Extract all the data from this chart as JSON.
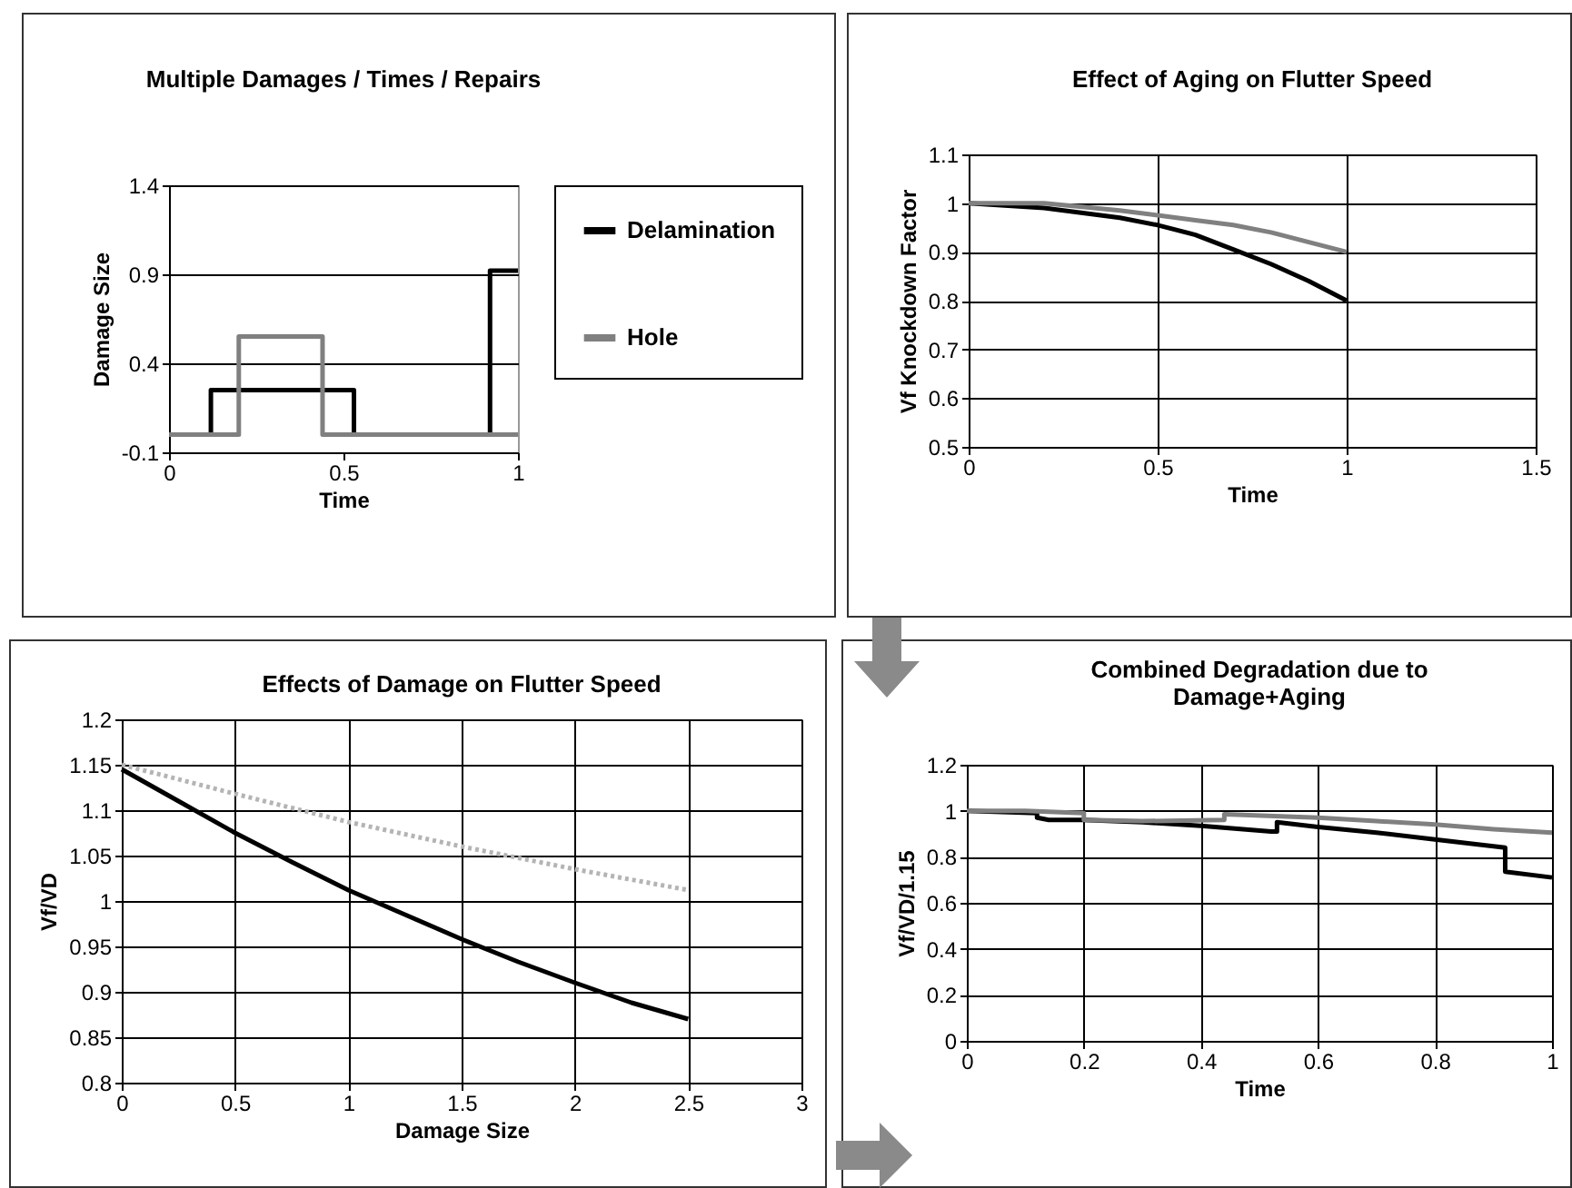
{
  "chart_data": [
    {
      "type": "step",
      "title": "Multiple Damages / Times / Repairs",
      "xlabel": "Time",
      "ylabel": "Damage Size",
      "xlim": [
        0,
        1
      ],
      "xticks": [
        0,
        0.5,
        1
      ],
      "ylim": [
        -0.1,
        1.4
      ],
      "yticks": [
        -0.1,
        0.4,
        0.9,
        1.4
      ],
      "grid": "y",
      "legend": "right",
      "series": [
        {
          "name": "Delamination",
          "color": "#000000",
          "x": [
            0,
            0.12,
            0.53,
            0.92,
            1
          ],
          "values": [
            0,
            0.25,
            0,
            0.92,
            0.92
          ]
        },
        {
          "name": "Hole",
          "color": "#808080",
          "x": [
            0,
            0.2,
            0.44,
            1
          ],
          "values": [
            0,
            0.55,
            0,
            0
          ]
        }
      ]
    },
    {
      "type": "line",
      "title": "Effect of Aging on Flutter Speed",
      "xlabel": "Time",
      "ylabel": "Vf Knockdown Factor",
      "xlim": [
        0,
        1.5
      ],
      "xticks": [
        0,
        0.5,
        1,
        1.5
      ],
      "ylim": [
        0.5,
        1.1
      ],
      "yticks": [
        0.5,
        0.6,
        0.7,
        0.8,
        0.9,
        1,
        1.1
      ],
      "grid": true,
      "series": [
        {
          "color": "#000000",
          "x": [
            0,
            0.2,
            0.4,
            0.5,
            0.6,
            0.7,
            0.8,
            0.9,
            1
          ],
          "values": [
            1,
            0.99,
            0.97,
            0.955,
            0.935,
            0.905,
            0.875,
            0.84,
            0.8
          ]
        },
        {
          "color": "#808080",
          "x": [
            0,
            0.2,
            0.4,
            0.5,
            0.6,
            0.7,
            0.8,
            0.9,
            1
          ],
          "values": [
            1,
            1,
            0.985,
            0.975,
            0.965,
            0.955,
            0.94,
            0.92,
            0.9
          ]
        }
      ]
    },
    {
      "type": "line",
      "title": "Effects of Damage on Flutter Speed",
      "xlabel": "Damage Size",
      "ylabel": "Vf/VD",
      "xlim": [
        0,
        3
      ],
      "xticks": [
        0,
        0.5,
        1,
        1.5,
        2,
        2.5,
        3
      ],
      "ylim": [
        0.8,
        1.2
      ],
      "yticks": [
        0.8,
        0.85,
        0.9,
        0.95,
        1,
        1.05,
        1.1,
        1.15,
        1.2
      ],
      "grid": true,
      "series": [
        {
          "color": "#000000",
          "x": [
            0,
            0.25,
            0.5,
            0.75,
            1,
            1.25,
            1.5,
            1.75,
            2,
            2.25,
            2.5
          ],
          "values": [
            1.145,
            1.11,
            1.075,
            1.043,
            1.012,
            0.985,
            0.958,
            0.933,
            0.91,
            0.888,
            0.87
          ]
        },
        {
          "color": "#b4b4b4",
          "line_style": "dotted",
          "x": [
            0,
            0.5,
            1,
            1.5,
            2,
            2.5
          ],
          "values": [
            1.15,
            1.118,
            1.087,
            1.06,
            1.035,
            1.012
          ]
        }
      ]
    },
    {
      "type": "line",
      "title": "Combined Degradation due to Damage+Aging",
      "xlabel": "Time",
      "ylabel": "Vf/VD/1.15",
      "xlim": [
        0,
        1
      ],
      "xticks": [
        0,
        0.2,
        0.4,
        0.6,
        0.8,
        1
      ],
      "ylim": [
        0,
        1.2
      ],
      "yticks": [
        0,
        0.2,
        0.4,
        0.6,
        0.8,
        1,
        1.2
      ],
      "grid": true,
      "series": [
        {
          "color": "#000000",
          "x": [
            0,
            0.12,
            0.12,
            0.14,
            0.2,
            0.3,
            0.4,
            0.52,
            0.53,
            0.53,
            0.6,
            0.7,
            0.8,
            0.92,
            0.92,
            1
          ],
          "values": [
            1,
            0.99,
            0.97,
            0.96,
            0.96,
            0.95,
            0.935,
            0.91,
            0.91,
            0.95,
            0.93,
            0.905,
            0.875,
            0.84,
            0.735,
            0.71
          ]
        },
        {
          "color": "#808080",
          "x": [
            0,
            0.1,
            0.2,
            0.2,
            0.3,
            0.44,
            0.44,
            0.6,
            0.7,
            0.8,
            0.9,
            1
          ],
          "values": [
            1,
            1,
            0.99,
            0.96,
            0.955,
            0.96,
            0.985,
            0.97,
            0.955,
            0.94,
            0.92,
            0.905
          ]
        }
      ]
    }
  ]
}
